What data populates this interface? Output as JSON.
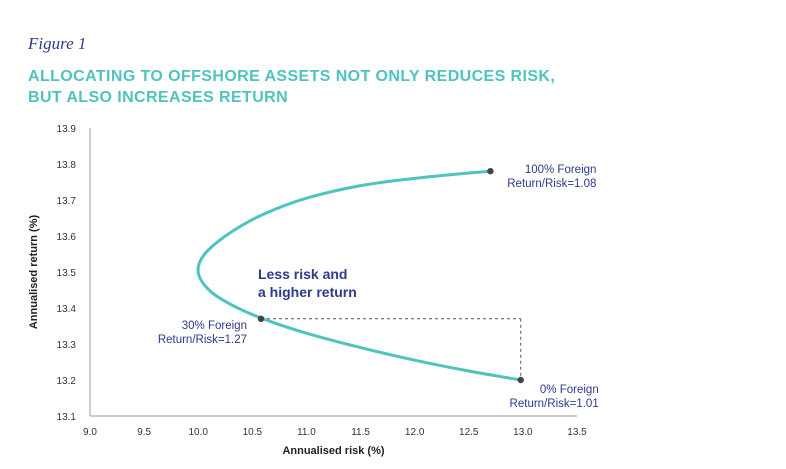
{
  "figure_label": "Figure 1",
  "title_lines": [
    "ALLOCATING TO OFFSHORE ASSETS NOT ONLY REDUCES RISK,",
    "BUT ALSO INCREASES RETURN"
  ],
  "colors": {
    "curve": "#4fc3bd",
    "title": "#4fc3bd",
    "annotation": "#2e3a8c",
    "marker": "#444444",
    "axis": "#999999"
  },
  "chart_data": {
    "type": "line",
    "xlabel": "Annualised risk (%)",
    "ylabel": "Annualised return (%)",
    "xlim": [
      9.0,
      13.5
    ],
    "ylim": [
      13.1,
      13.9
    ],
    "xticks": [
      "9.0",
      "9.5",
      "10.0",
      "10.5",
      "11.0",
      "11.5",
      "12.0",
      "12.5",
      "13.0",
      "13.5"
    ],
    "yticks": [
      "13.1",
      "13.2",
      "13.3",
      "13.4",
      "13.5",
      "13.6",
      "13.7",
      "13.8",
      "13.9"
    ],
    "grid": false,
    "series": [
      {
        "x": [
          12.98,
          12.5,
          12.0,
          11.5,
          11.0,
          10.6,
          10.3,
          10.1,
          10.0,
          10.06,
          10.3,
          10.6,
          11.0,
          11.5,
          12.0,
          12.5,
          12.7
        ],
        "y": [
          13.2,
          13.225,
          13.255,
          13.29,
          13.33,
          13.37,
          13.41,
          13.45,
          13.5,
          13.55,
          13.61,
          13.66,
          13.705,
          13.74,
          13.76,
          13.775,
          13.78
        ]
      }
    ],
    "points": [
      {
        "x": 12.7,
        "y": 13.78,
        "label_line1": "100% Foreign",
        "label_line2": "Return/Risk=1.08"
      },
      {
        "x": 10.58,
        "y": 13.37,
        "label_line1": "30% Foreign",
        "label_line2": "Return/Risk=1.27"
      },
      {
        "x": 12.98,
        "y": 13.2,
        "label_line1": "0% Foreign",
        "label_line2": "Return/Risk=1.01"
      }
    ],
    "callout_lines": [
      "Less risk and",
      "a higher return"
    ]
  }
}
